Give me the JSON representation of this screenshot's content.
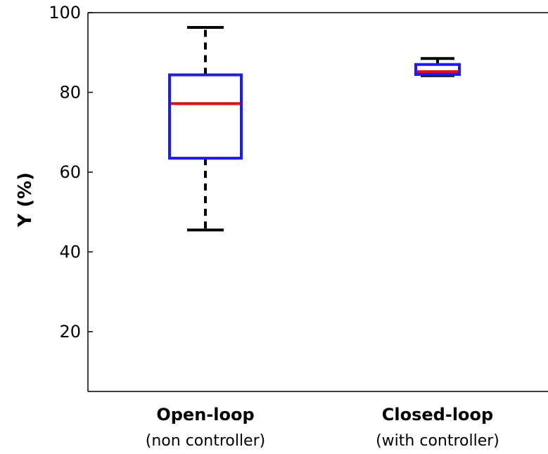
{
  "chart_data": {
    "type": "box",
    "categories": [
      {
        "label": "Open-loop",
        "sublabel": "(non controller)"
      },
      {
        "label": "Closed-loop",
        "sublabel": "(with controller)"
      }
    ],
    "boxes": [
      {
        "whisker_low": 45.5,
        "q1": 63.5,
        "median": 77.2,
        "q3": 84.4,
        "whisker_high": 96.3
      },
      {
        "whisker_low": 84.2,
        "q1": 84.5,
        "median": 85.2,
        "q3": 87.0,
        "whisker_high": 88.5
      }
    ],
    "title": "",
    "xlabel": "",
    "ylabel": "Y (%)",
    "ylim": [
      5,
      100
    ],
    "yticks": [
      20,
      40,
      60,
      80,
      100
    ],
    "grid": false,
    "colors": {
      "box": "#1a1aff",
      "median": "#ff0000",
      "whisker": "#000000"
    }
  }
}
